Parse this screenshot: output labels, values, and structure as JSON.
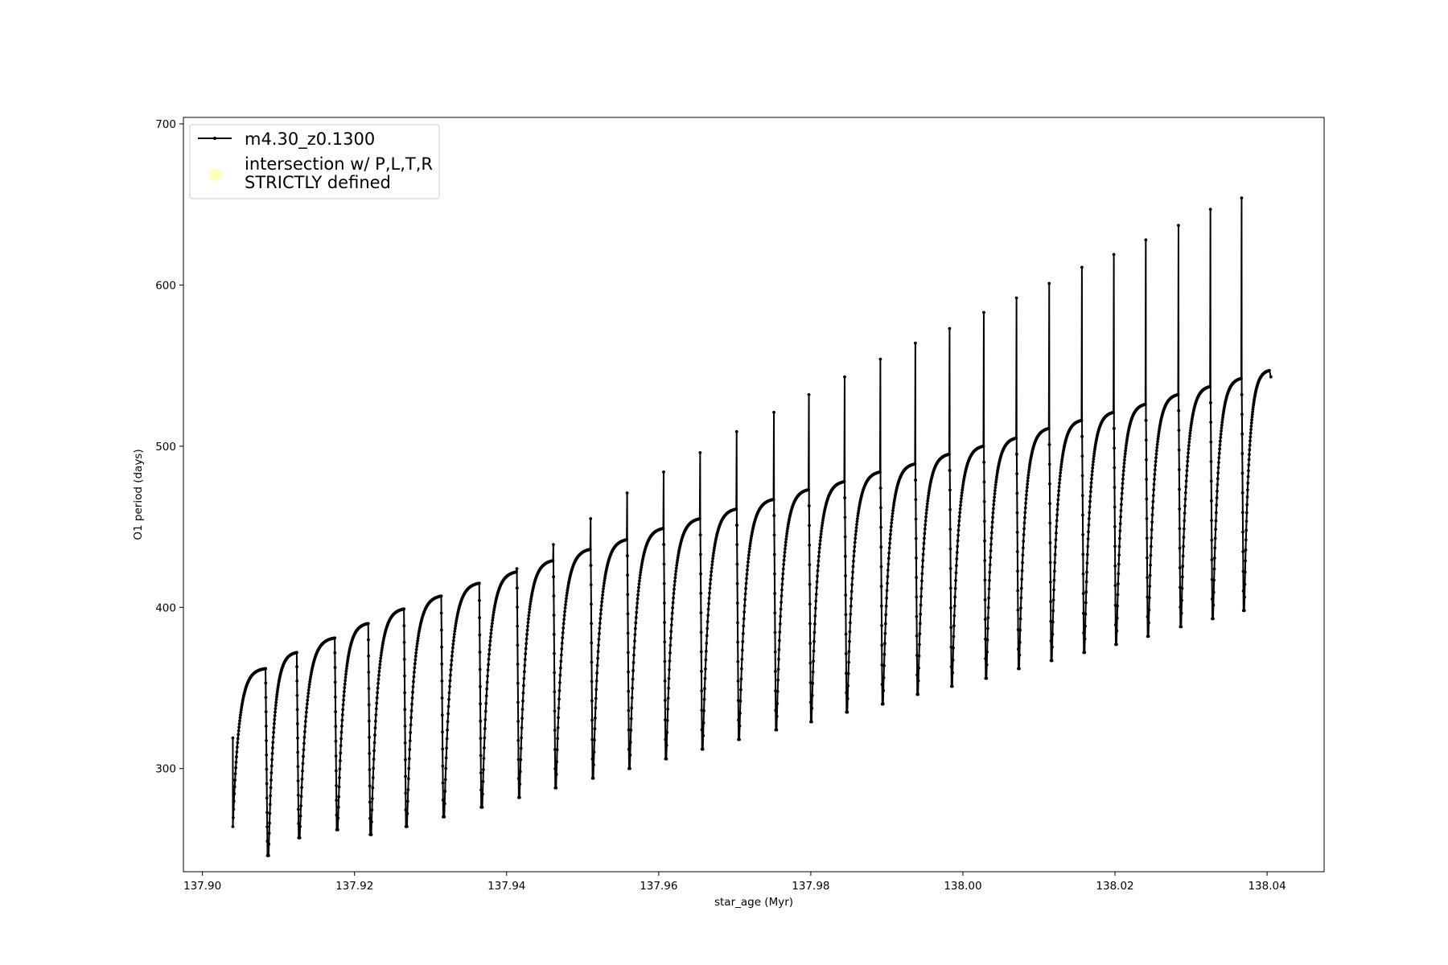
{
  "chart_data": {
    "type": "line",
    "xlabel": "star_age (Myr)",
    "ylabel": "O1 period (days)",
    "xlim": [
      137.8975,
      138.0475
    ],
    "ylim": [
      236,
      704
    ],
    "x_ticks": [
      137.9,
      137.92,
      137.94,
      137.96,
      137.98,
      138.0,
      138.02,
      138.04
    ],
    "x_tick_labels": [
      "137.90",
      "137.92",
      "137.94",
      "137.96",
      "137.98",
      "138.00",
      "138.02",
      "138.04"
    ],
    "y_ticks": [
      300,
      400,
      500,
      600,
      700
    ],
    "y_tick_labels": [
      "300",
      "400",
      "500",
      "600",
      "700"
    ],
    "grid": false,
    "legend_position": "upper-left",
    "series": [
      {
        "name": "m4.30_z0.1300",
        "color": "#000000",
        "marker": "dot",
        "start_point": {
          "x": 137.904,
          "y": 319
        },
        "end_point": {
          "x": 138.0405,
          "y": 543
        },
        "pulse_cycles": [
          {
            "start": 137.904,
            "peak_age": 137.9083,
            "min": 264,
            "max": 362,
            "spike": null,
            "dip": 246
          },
          {
            "start": 137.9087,
            "peak_age": 137.9124,
            "min": 246,
            "max": 372,
            "spike": null,
            "dip": 257
          },
          {
            "start": 137.9128,
            "peak_age": 137.9174,
            "min": 257,
            "max": 381,
            "spike": null,
            "dip": 262
          },
          {
            "start": 137.9178,
            "peak_age": 137.9218,
            "min": 262,
            "max": 390,
            "spike": null,
            "dip": 259
          },
          {
            "start": 137.9222,
            "peak_age": 137.9265,
            "min": 259,
            "max": 399,
            "spike": null,
            "dip": 264
          },
          {
            "start": 137.9269,
            "peak_age": 137.9314,
            "min": 264,
            "max": 407,
            "spike": null,
            "dip": 270
          },
          {
            "start": 137.9318,
            "peak_age": 137.9364,
            "min": 270,
            "max": 415,
            "spike": null,
            "dip": 276
          },
          {
            "start": 137.9368,
            "peak_age": 137.9413,
            "min": 276,
            "max": 422,
            "spike": 424,
            "dip": 282
          },
          {
            "start": 137.9417,
            "peak_age": 137.9461,
            "min": 282,
            "max": 429,
            "spike": 439,
            "dip": 288
          },
          {
            "start": 137.9465,
            "peak_age": 137.951,
            "min": 288,
            "max": 436,
            "spike": 455,
            "dip": 294
          },
          {
            "start": 137.9514,
            "peak_age": 137.9558,
            "min": 294,
            "max": 442,
            "spike": 471,
            "dip": 300
          },
          {
            "start": 137.9562,
            "peak_age": 137.9606,
            "min": 300,
            "max": 449,
            "spike": 484,
            "dip": 306
          },
          {
            "start": 137.961,
            "peak_age": 137.9654,
            "min": 306,
            "max": 455,
            "spike": 496,
            "dip": 312
          },
          {
            "start": 137.9658,
            "peak_age": 137.9702,
            "min": 312,
            "max": 461,
            "spike": 509,
            "dip": 318
          },
          {
            "start": 137.9706,
            "peak_age": 137.9751,
            "min": 318,
            "max": 467,
            "spike": 521,
            "dip": 324
          },
          {
            "start": 137.9755,
            "peak_age": 137.9797,
            "min": 324,
            "max": 473,
            "spike": 532,
            "dip": 329
          },
          {
            "start": 137.9801,
            "peak_age": 137.9844,
            "min": 329,
            "max": 478,
            "spike": 543,
            "dip": 335
          },
          {
            "start": 137.9848,
            "peak_age": 137.9891,
            "min": 335,
            "max": 484,
            "spike": 554,
            "dip": 340
          },
          {
            "start": 137.9895,
            "peak_age": 137.9937,
            "min": 340,
            "max": 489,
            "spike": 564,
            "dip": 346
          },
          {
            "start": 137.9941,
            "peak_age": 137.9982,
            "min": 346,
            "max": 495,
            "spike": 573,
            "dip": 351
          },
          {
            "start": 137.9986,
            "peak_age": 138.0027,
            "min": 351,
            "max": 500,
            "spike": 583,
            "dip": 356
          },
          {
            "start": 138.0031,
            "peak_age": 138.007,
            "min": 356,
            "max": 505,
            "spike": 592,
            "dip": 362
          },
          {
            "start": 138.0074,
            "peak_age": 138.0113,
            "min": 362,
            "max": 511,
            "spike": 601,
            "dip": 367
          },
          {
            "start": 138.0117,
            "peak_age": 138.0156,
            "min": 367,
            "max": 516,
            "spike": 611,
            "dip": 372
          },
          {
            "start": 138.016,
            "peak_age": 138.0198,
            "min": 372,
            "max": 521,
            "spike": 619,
            "dip": 377
          },
          {
            "start": 138.0202,
            "peak_age": 138.024,
            "min": 377,
            "max": 526,
            "spike": 628,
            "dip": 382
          },
          {
            "start": 138.0244,
            "peak_age": 138.0283,
            "min": 382,
            "max": 532,
            "spike": 637,
            "dip": 388
          },
          {
            "start": 138.0287,
            "peak_age": 138.0325,
            "min": 388,
            "max": 537,
            "spike": 647,
            "dip": 393
          },
          {
            "start": 138.0329,
            "peak_age": 138.0366,
            "min": 393,
            "max": 542,
            "spike": 654,
            "dip": 398
          },
          {
            "start": 138.037,
            "peak_age": 138.0403,
            "min": 398,
            "max": 547,
            "spike": null,
            "dip": null
          }
        ]
      },
      {
        "name": "intersection w/ P,L,T,R\nSTRICTLY defined",
        "label_lines": [
          "intersection w/ P,L,T,R",
          "STRICTLY defined"
        ],
        "color": "#ffffc0",
        "marker": "circle",
        "values": []
      }
    ]
  }
}
